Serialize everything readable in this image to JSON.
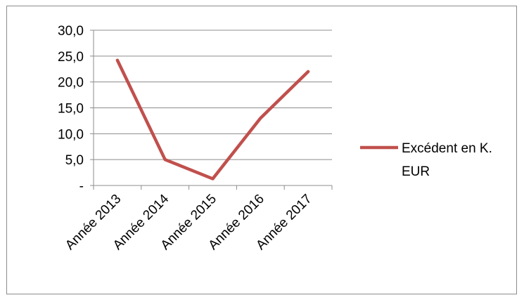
{
  "chart_data": {
    "type": "line",
    "categories": [
      "Année 2013",
      "Année 2014",
      "Année 2015",
      "Année 2016",
      "Année 2017"
    ],
    "series": [
      {
        "name": "Excédent en K. EUR",
        "values": [
          24.2,
          5.0,
          1.3,
          13.0,
          22.0
        ],
        "color": "#c0504d"
      }
    ],
    "y_ticks": [
      "-",
      "5,0",
      "10,0",
      "15,0",
      "20,0",
      "25,0",
      "30,0"
    ],
    "ylim": [
      0,
      30
    ],
    "y_step": 5,
    "grid": "horizontal",
    "legend": {
      "position": "right",
      "lines": [
        "Excédent en K.",
        "EUR"
      ]
    }
  }
}
